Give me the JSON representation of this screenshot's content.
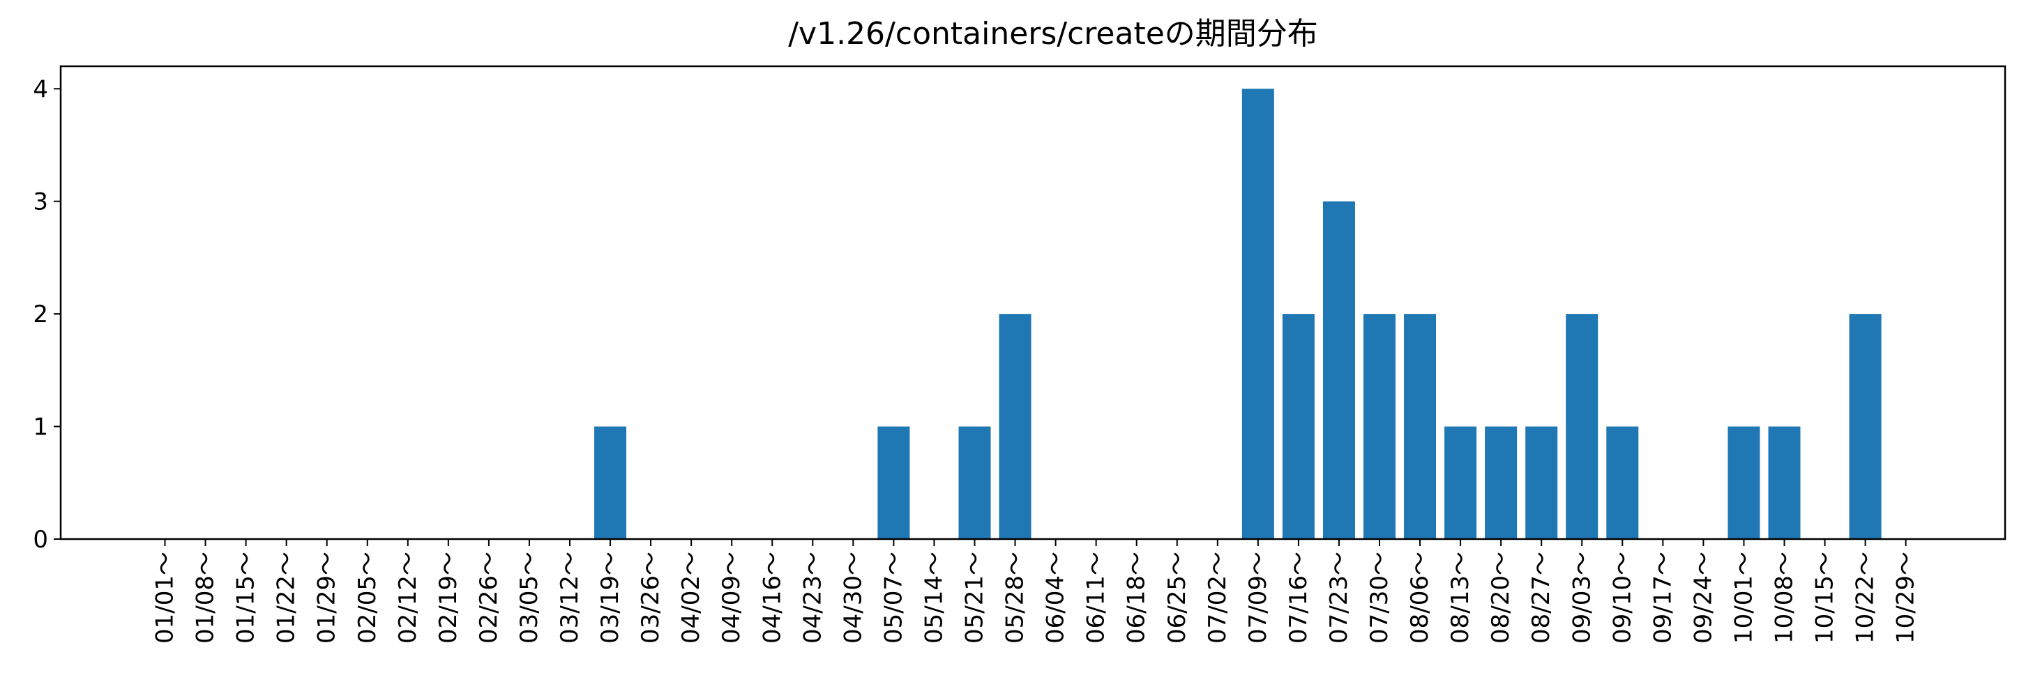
{
  "chart_data": {
    "type": "bar",
    "title": "/v1.26/containers/createの期間分布",
    "xlabel": "",
    "ylabel": "",
    "ylim": [
      0,
      4.2
    ],
    "yticks": [
      0,
      1,
      2,
      3,
      4
    ],
    "bar_color": "#1f77b4",
    "grid": false,
    "legend": "none",
    "categories": [
      "01/01～",
      "01/08～",
      "01/15～",
      "01/22～",
      "01/29～",
      "02/05～",
      "02/12～",
      "02/19～",
      "02/26～",
      "03/05～",
      "03/12～",
      "03/19～",
      "03/26～",
      "04/02～",
      "04/09～",
      "04/16～",
      "04/23～",
      "04/30～",
      "05/07～",
      "05/14～",
      "05/21～",
      "05/28～",
      "06/04～",
      "06/11～",
      "06/18～",
      "06/25～",
      "07/02～",
      "07/09～",
      "07/16～",
      "07/23～",
      "07/30～",
      "08/06～",
      "08/13～",
      "08/20～",
      "08/27～",
      "09/03～",
      "09/10～",
      "09/17～",
      "09/24～",
      "10/01～",
      "10/08～",
      "10/15～",
      "10/22～",
      "10/29～"
    ],
    "values": [
      0,
      0,
      0,
      0,
      0,
      0,
      0,
      0,
      0,
      0,
      0,
      1,
      0,
      0,
      0,
      0,
      0,
      0,
      1,
      0,
      1,
      2,
      0,
      0,
      0,
      0,
      0,
      4,
      2,
      3,
      2,
      2,
      1,
      1,
      1,
      2,
      1,
      0,
      0,
      1,
      1,
      0,
      2,
      0
    ]
  }
}
